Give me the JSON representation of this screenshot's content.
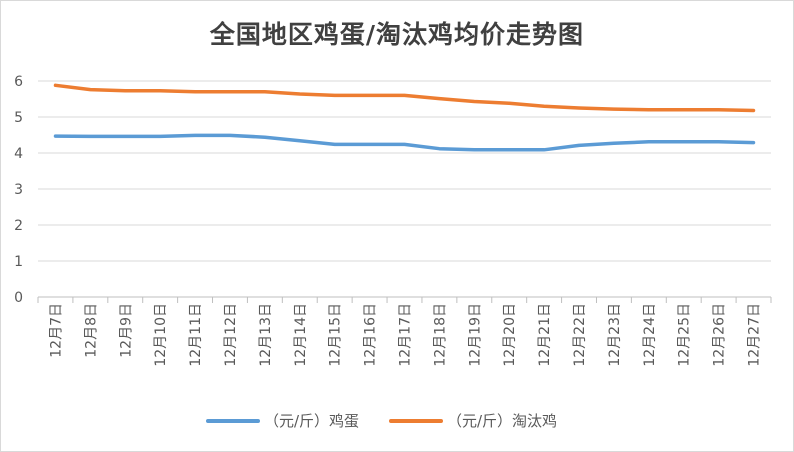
{
  "chart_data": {
    "type": "line",
    "title": "全国地区鸡蛋/淘汰鸡均价走势图",
    "categories": [
      "12月7日",
      "12月8日",
      "12月9日",
      "12月10日",
      "12月11日",
      "12月12日",
      "12月13日",
      "12月14日",
      "12月15日",
      "12月16日",
      "12月17日",
      "12月18日",
      "12月19日",
      "12月20日",
      "12月21日",
      "12月22日",
      "12月23日",
      "12月24日",
      "12月25日",
      "12月26日",
      "12月27日"
    ],
    "series": [
      {
        "name": "（元/斤）鸡蛋",
        "color": "#5b9bd5",
        "values": [
          4.47,
          4.46,
          4.46,
          4.46,
          4.49,
          4.49,
          4.44,
          4.34,
          4.24,
          4.24,
          4.24,
          4.12,
          4.09,
          4.09,
          4.09,
          4.21,
          4.27,
          4.31,
          4.31,
          4.31,
          4.29
        ]
      },
      {
        "name": "（元/斤）淘汰鸡",
        "color": "#ed7d31",
        "values": [
          5.88,
          5.76,
          5.73,
          5.73,
          5.7,
          5.7,
          5.7,
          5.64,
          5.6,
          5.6,
          5.6,
          5.51,
          5.43,
          5.38,
          5.3,
          5.25,
          5.22,
          5.2,
          5.2,
          5.2,
          5.18
        ]
      }
    ],
    "ylim": [
      0,
      6
    ],
    "yticks": [
      0,
      1,
      2,
      3,
      4,
      5,
      6
    ],
    "grid": true,
    "legend_position": "bottom"
  }
}
